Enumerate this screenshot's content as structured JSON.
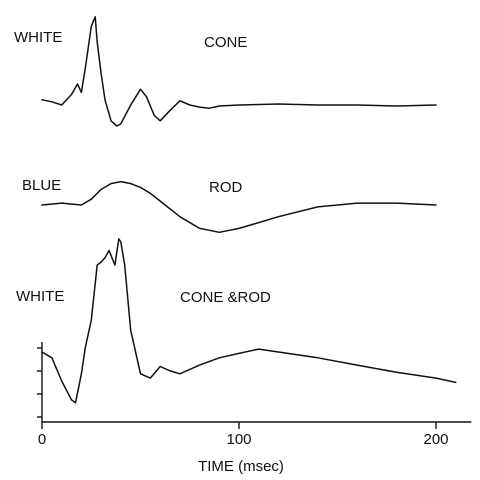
{
  "chart_data": {
    "type": "line",
    "title": "",
    "xlabel": "TIME (msec)",
    "ylabel": "",
    "xlim": [
      0,
      220
    ],
    "xticks": [
      0,
      100,
      200
    ],
    "grid": false,
    "legend": "none",
    "series": [
      {
        "stimulus": "WHITE",
        "response": "CONE",
        "t": [
          0,
          5,
          10,
          15,
          18,
          20,
          22,
          25,
          27,
          28,
          30,
          32,
          35,
          38,
          40,
          45,
          50,
          53,
          57,
          60,
          65,
          70,
          75,
          80,
          85,
          90,
          100,
          120,
          140,
          160,
          180,
          200
        ],
        "v": [
          0.5,
          0.3,
          0.0,
          1.0,
          2.0,
          1.2,
          3.5,
          7.5,
          8.4,
          6.0,
          3.0,
          0.5,
          -1.5,
          -2.0,
          -1.8,
          0.0,
          1.5,
          0.8,
          -1.0,
          -1.5,
          -0.5,
          0.4,
          0.0,
          -0.2,
          -0.3,
          -0.1,
          0.0,
          0.1,
          0.0,
          0.0,
          -0.1,
          0.0
        ]
      },
      {
        "stimulus": "BLUE",
        "response": "ROD",
        "t": [
          0,
          10,
          20,
          25,
          30,
          35,
          40,
          45,
          50,
          55,
          60,
          70,
          80,
          85,
          90,
          100,
          110,
          120,
          140,
          160,
          180,
          200
        ],
        "v": [
          0.0,
          0.1,
          0.0,
          0.3,
          0.8,
          1.1,
          1.2,
          1.1,
          0.9,
          0.6,
          0.2,
          -0.6,
          -1.2,
          -1.3,
          -1.4,
          -1.2,
          -0.9,
          -0.6,
          -0.1,
          0.1,
          0.1,
          0.0
        ]
      },
      {
        "stimulus": "WHITE",
        "response": "CONE &ROD",
        "t": [
          0,
          5,
          10,
          15,
          17,
          20,
          22,
          25,
          28,
          30,
          32,
          34,
          37,
          39,
          40,
          42,
          45,
          50,
          55,
          60,
          65,
          70,
          75,
          80,
          90,
          100,
          110,
          120,
          130,
          140,
          160,
          180,
          200,
          210
        ],
        "v": [
          0.0,
          -0.4,
          -2.0,
          -3.3,
          -3.5,
          -1.5,
          0.3,
          2.2,
          6.0,
          6.2,
          6.5,
          7.0,
          6.0,
          7.8,
          7.6,
          6.0,
          1.5,
          -1.5,
          -1.8,
          -1.0,
          -1.3,
          -1.5,
          -1.2,
          -0.9,
          -0.4,
          -0.1,
          0.2,
          0.0,
          -0.2,
          -0.4,
          -0.9,
          -1.4,
          -1.8,
          -2.1
        ]
      }
    ]
  }
}
